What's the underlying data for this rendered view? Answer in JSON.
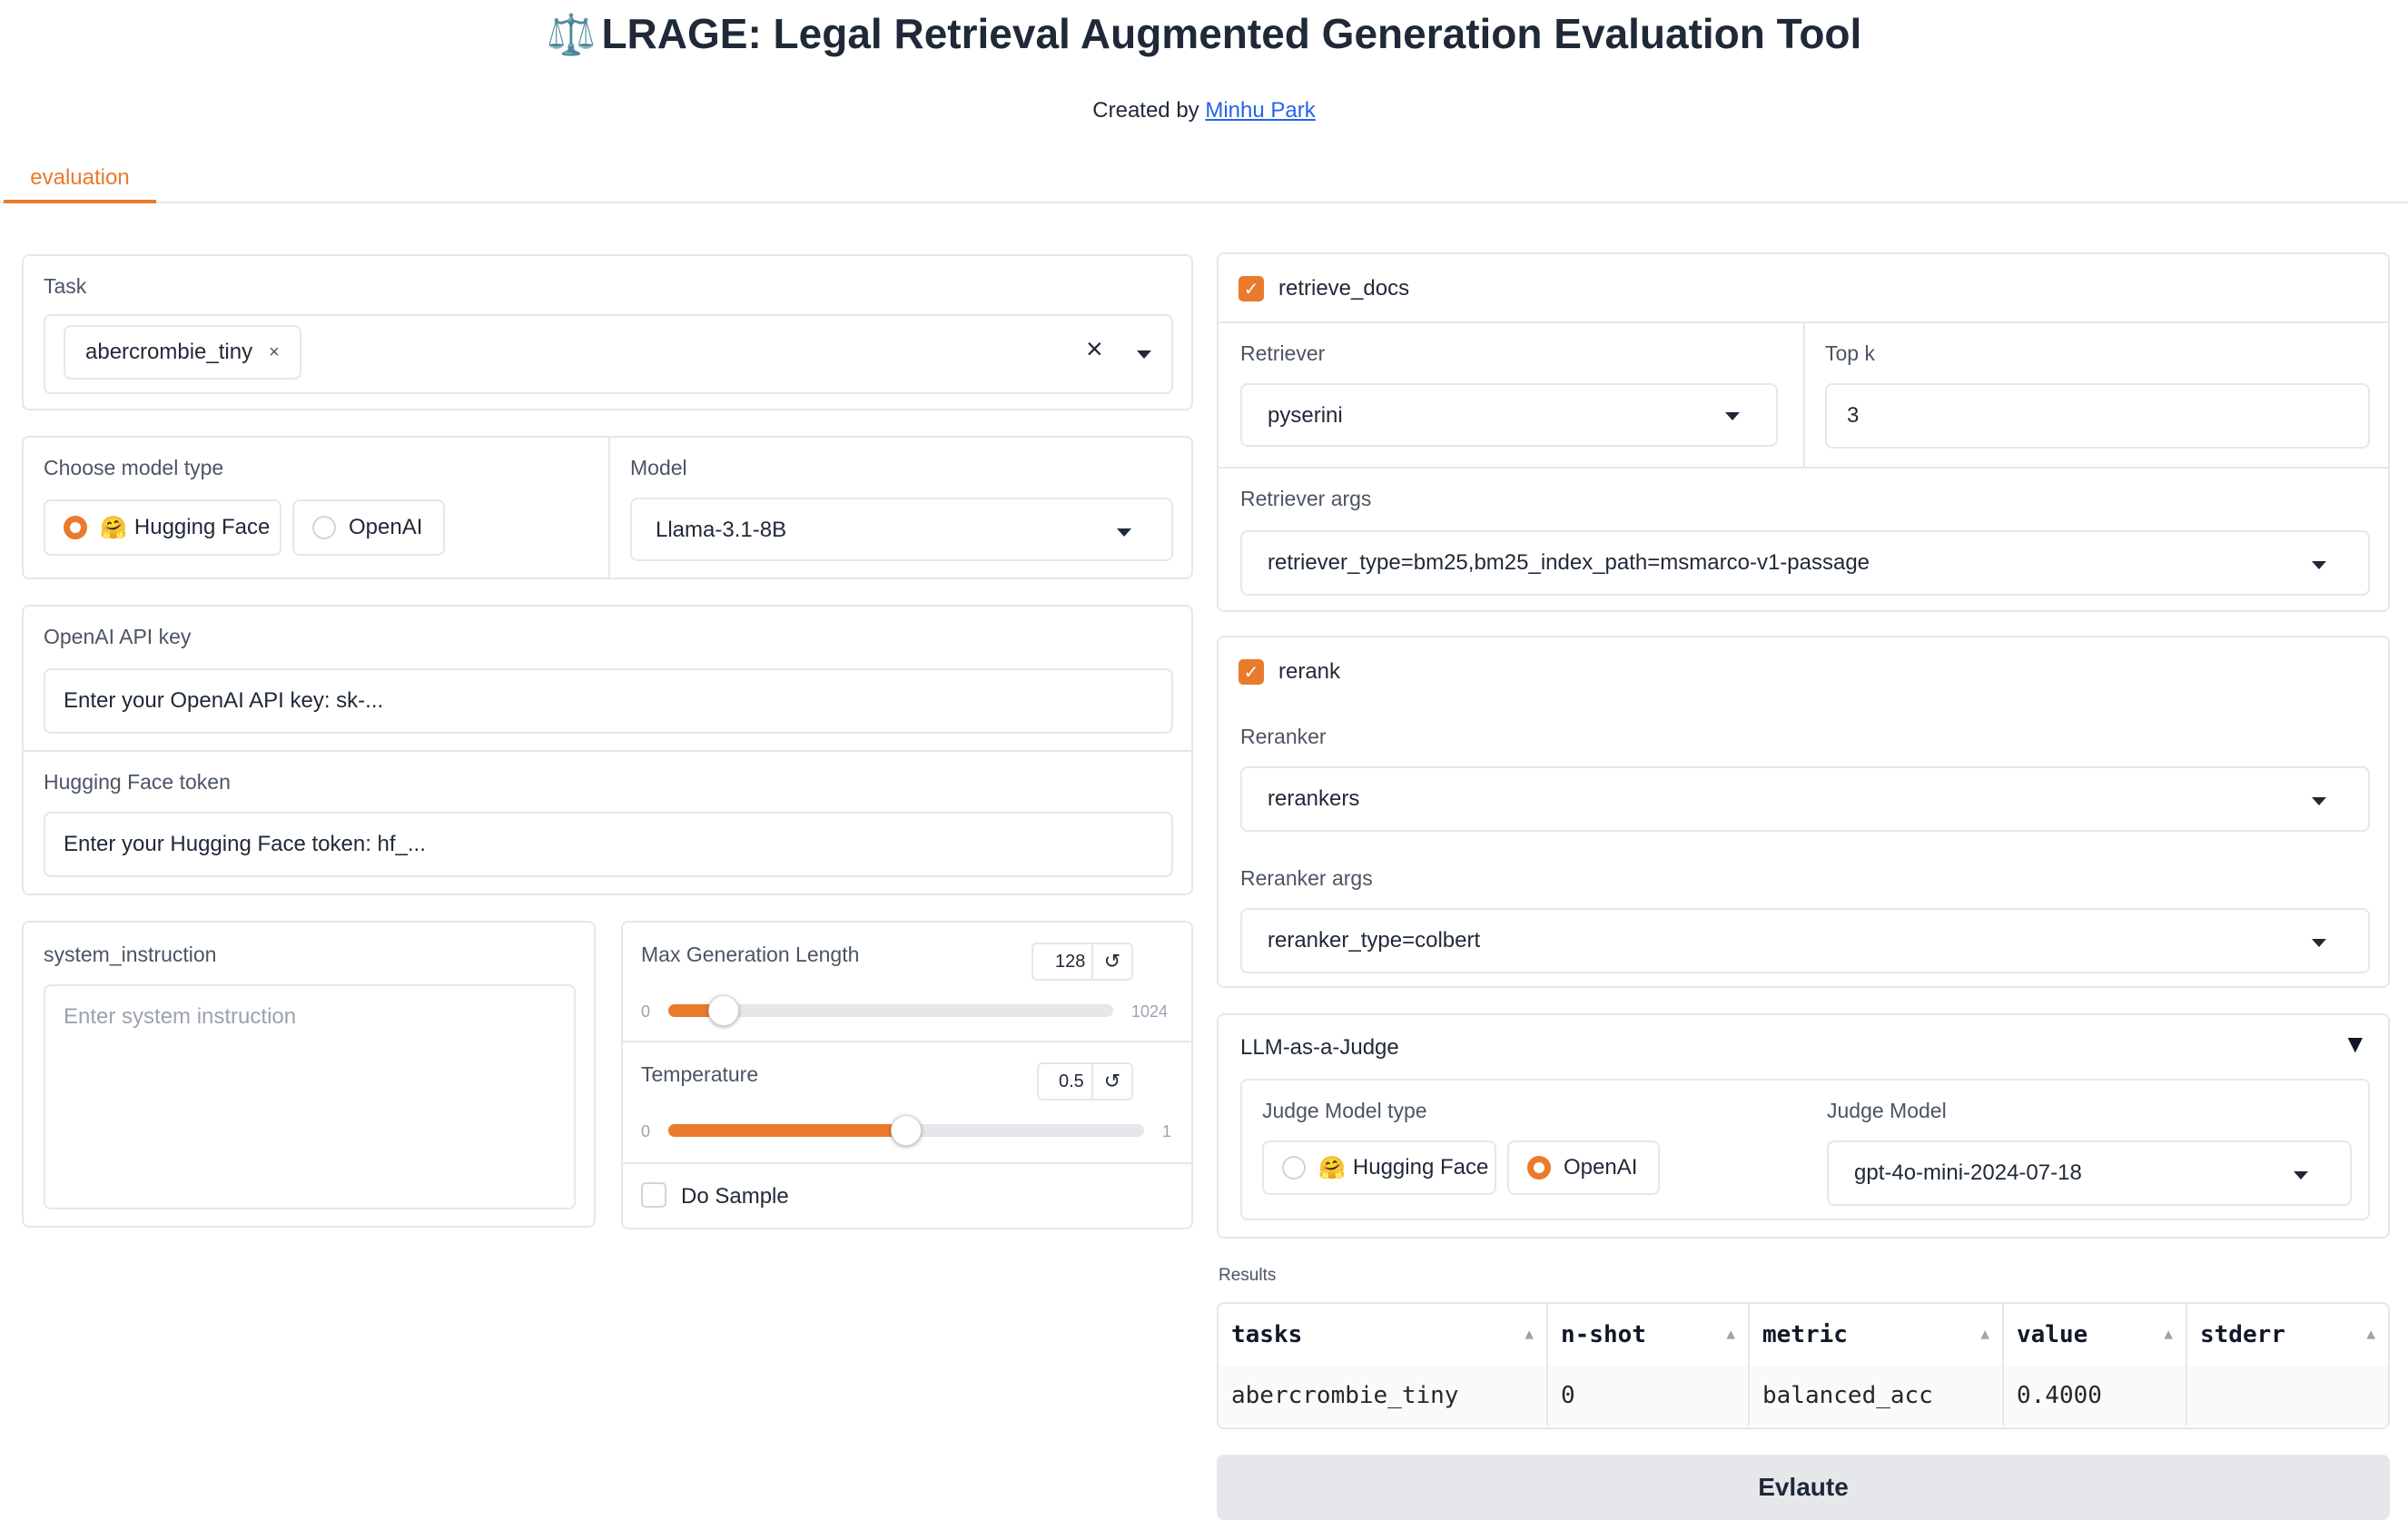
{
  "header": {
    "title_icon": "⚖️",
    "title": "LRAGE: Legal Retrieval Augmented Generation Evaluation Tool",
    "created_by_prefix": "Created by",
    "author_link": "Minhu Park"
  },
  "tabs": [
    {
      "label": "evaluation",
      "active": true
    }
  ],
  "left": {
    "task": {
      "label": "Task",
      "selected_chip": "abercrombie_tiny",
      "chip_remove": "×",
      "clear_icon": "×"
    },
    "model_type": {
      "label": "Choose model type",
      "options": [
        {
          "icon": "🤗",
          "label": "Hugging Face",
          "selected": true
        },
        {
          "label": "OpenAI",
          "selected": false
        }
      ]
    },
    "model": {
      "label": "Model",
      "value": "Llama-3.1-8B"
    },
    "openai_key": {
      "label": "OpenAI API key",
      "value": "Enter your OpenAI API key: sk-..."
    },
    "hf_token": {
      "label": "Hugging Face token",
      "value": "Enter your Hugging Face token: hf_..."
    },
    "system_instruction": {
      "label": "system_instruction",
      "placeholder": "Enter system instruction"
    },
    "max_gen": {
      "label": "Max Generation Length",
      "value": "128",
      "min": "0",
      "max": "1024",
      "fraction": 0.125
    },
    "temperature": {
      "label": "Temperature",
      "value": "0.5",
      "min": "0",
      "max": "1",
      "fraction": 0.5
    },
    "do_sample": {
      "label": "Do Sample",
      "checked": false
    }
  },
  "right": {
    "retrieve_docs": {
      "label": "retrieve_docs",
      "checked": true
    },
    "retriever": {
      "label": "Retriever",
      "value": "pyserini"
    },
    "top_k": {
      "label": "Top k",
      "value": "3"
    },
    "retriever_args": {
      "label": "Retriever args",
      "value": "retriever_type=bm25,bm25_index_path=msmarco-v1-passage"
    },
    "rerank": {
      "label": "rerank",
      "checked": true
    },
    "reranker": {
      "label": "Reranker",
      "value": "rerankers"
    },
    "reranker_args": {
      "label": "Reranker args",
      "value": "reranker_type=colbert"
    },
    "judge": {
      "label": "LLM-as-a-Judge",
      "toggle_icon": "▼",
      "model_type_label": "Judge Model type",
      "options": [
        {
          "icon": "🤗",
          "label": "Hugging Face",
          "selected": false
        },
        {
          "label": "OpenAI",
          "selected": true
        }
      ],
      "model_label": "Judge Model",
      "model_value": "gpt-4o-mini-2024-07-18"
    },
    "results": {
      "label": "Results",
      "columns": [
        "tasks",
        "n-shot",
        "metric",
        "value",
        "stderr"
      ],
      "rows": [
        [
          "abercrombie_tiny",
          "0",
          "balanced_acc",
          "0.4000",
          ""
        ]
      ]
    },
    "evaluate_button": "Evlaute"
  },
  "colors": {
    "accent": "#ea7a2c",
    "link": "#2563eb",
    "border": "#e6e7eb"
  }
}
